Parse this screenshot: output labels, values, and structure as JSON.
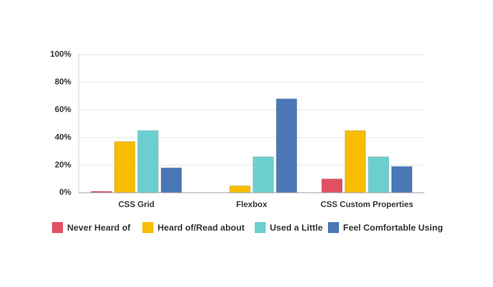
{
  "chart_data": {
    "type": "bar",
    "categories": [
      "CSS Grid",
      "Flexbox",
      "CSS Custom Properties"
    ],
    "series": [
      {
        "name": "Never Heard of",
        "color": "#e05263",
        "values": [
          1,
          0,
          10
        ]
      },
      {
        "name": "Heard of/Read about",
        "color": "#f8bd00",
        "values": [
          37,
          5,
          45
        ]
      },
      {
        "name": "Used a Little",
        "color": "#6ccfcf",
        "values": [
          45,
          26,
          26
        ]
      },
      {
        "name": "Feel Comfortable Using",
        "color": "#4a78b5",
        "values": [
          18,
          68,
          19
        ]
      }
    ],
    "ylim": [
      0,
      100
    ],
    "yticks": [
      {
        "value": 0,
        "label": "0%"
      },
      {
        "value": 20,
        "label": "20%"
      },
      {
        "value": 40,
        "label": "40%"
      },
      {
        "value": 60,
        "label": "60%"
      },
      {
        "value": 80,
        "label": "80%"
      },
      {
        "value": 100,
        "label": "100%"
      }
    ],
    "grid": true,
    "legend": "bottom"
  }
}
